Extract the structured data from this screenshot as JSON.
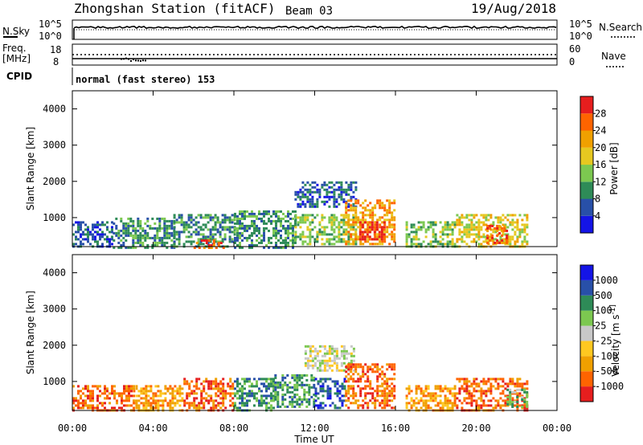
{
  "header": {
    "station": "Zhongshan Station (fitACF)",
    "beam": "Beam 03",
    "date": "19/Aug/2018"
  },
  "cpid_text": "normal (fast stereo) 153",
  "small_panels": {
    "nsky_label": "N.Sky",
    "nsky_ticks": [
      "10^5",
      "10^0"
    ],
    "nsearch_label": "N.Search",
    "nsearch_ticks": [
      "10^5",
      "10^0"
    ],
    "freq_label_line1": "Freq.",
    "freq_label_line2": "[MHz]",
    "freq_ticks": [
      "18",
      "8"
    ],
    "nave_label": "Nave",
    "nave_ticks": [
      "60",
      "0"
    ],
    "cpid_label": "CPID"
  },
  "colors": {
    "power": [
      "#1414e6",
      "#2850a8",
      "#2e8b57",
      "#7cc850",
      "#e6c820",
      "#f0a000",
      "#ff6400",
      "#e61e1e"
    ],
    "velocity": [
      "#e61e1e",
      "#ff6400",
      "#f0a000",
      "#ffc820",
      "#c8c8c8",
      "#7cc850",
      "#2e8b57",
      "#2850a8",
      "#1414e6"
    ]
  },
  "chart_data": [
    {
      "type": "heatmap",
      "title": "",
      "ylabel": "Slant Range [km]",
      "xlabel": "Time UT",
      "x_range_hours": [
        0,
        24
      ],
      "x_ticks": [
        "00:00",
        "04:00",
        "08:00",
        "12:00",
        "16:00",
        "20:00",
        "00:00"
      ],
      "ylim": [
        200,
        4500
      ],
      "y_ticks": [
        1000,
        2000,
        3000,
        4000
      ],
      "colorbar_label": "Power [dB]",
      "colorbar_ticks": [
        "4",
        "8",
        "12",
        "16",
        "20",
        "24",
        "28"
      ],
      "grid": false,
      "echo_regions": [
        {
          "t": [
            0.0,
            2.0
          ],
          "range_km": [
            200,
            900
          ],
          "level": 1
        },
        {
          "t": [
            2.0,
            5.0
          ],
          "range_km": [
            200,
            1000
          ],
          "level": 2
        },
        {
          "t": [
            5.0,
            8.0
          ],
          "range_km": [
            200,
            1100
          ],
          "level": 2
        },
        {
          "t": [
            6.0,
            7.5
          ],
          "range_km": [
            200,
            400
          ],
          "level": 6
        },
        {
          "t": [
            8.0,
            11.0
          ],
          "range_km": [
            200,
            1200
          ],
          "level": 2
        },
        {
          "t": [
            11.0,
            14.0
          ],
          "range_km": [
            1300,
            2000
          ],
          "level": 1
        },
        {
          "t": [
            11.0,
            14.0
          ],
          "range_km": [
            300,
            1100
          ],
          "level": 3
        },
        {
          "t": [
            13.5,
            16.0
          ],
          "range_km": [
            300,
            1500
          ],
          "level": 5
        },
        {
          "t": [
            14.2,
            15.5
          ],
          "range_km": [
            400,
            900
          ],
          "level": 7
        },
        {
          "t": [
            16.5,
            19.0
          ],
          "range_km": [
            200,
            900
          ],
          "level": 3
        },
        {
          "t": [
            19.0,
            22.5
          ],
          "range_km": [
            200,
            1100
          ],
          "level": 4
        },
        {
          "t": [
            20.5,
            21.5
          ],
          "range_km": [
            300,
            800
          ],
          "level": 6
        }
      ]
    },
    {
      "type": "heatmap",
      "title": "",
      "ylabel": "Slant Range [km]",
      "xlabel": "Time UT",
      "x_range_hours": [
        0,
        24
      ],
      "x_ticks": [
        "00:00",
        "04:00",
        "08:00",
        "12:00",
        "16:00",
        "20:00",
        "00:00"
      ],
      "ylim": [
        200,
        4500
      ],
      "y_ticks": [
        1000,
        2000,
        3000,
        4000
      ],
      "colorbar_label": "Velocity [m s^-1]",
      "colorbar_ticks": [
        "1000",
        "500",
        "100",
        "25",
        "-25",
        "-100",
        "-500",
        "-1000"
      ],
      "grid": false,
      "echo_regions": [
        {
          "t": [
            0.0,
            3.0
          ],
          "range_km": [
            200,
            900
          ],
          "level": 1
        },
        {
          "t": [
            3.0,
            5.5
          ],
          "range_km": [
            200,
            900
          ],
          "level": 2
        },
        {
          "t": [
            5.5,
            8.0
          ],
          "range_km": [
            200,
            1100
          ],
          "level": 1
        },
        {
          "t": [
            8.0,
            10.0
          ],
          "range_km": [
            200,
            1100
          ],
          "level": 6
        },
        {
          "t": [
            10.0,
            12.0
          ],
          "range_km": [
            300,
            1200
          ],
          "level": 6
        },
        {
          "t": [
            11.5,
            14.0
          ],
          "range_km": [
            1300,
            2000
          ],
          "level": 4
        },
        {
          "t": [
            12.0,
            13.5
          ],
          "range_km": [
            300,
            1100
          ],
          "level": 7
        },
        {
          "t": [
            13.5,
            16.0
          ],
          "range_km": [
            300,
            1500
          ],
          "level": 1
        },
        {
          "t": [
            16.5,
            19.0
          ],
          "range_km": [
            200,
            900
          ],
          "level": 2
        },
        {
          "t": [
            19.0,
            22.5
          ],
          "range_km": [
            200,
            1100
          ],
          "level": 1
        },
        {
          "t": [
            21.5,
            22.5
          ],
          "range_km": [
            300,
            800
          ],
          "level": 5
        }
      ]
    }
  ]
}
